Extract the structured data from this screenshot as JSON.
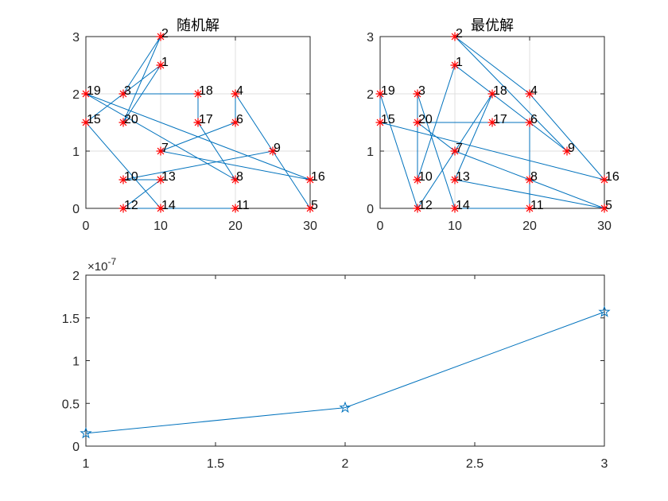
{
  "chart_data": [
    {
      "type": "scatter",
      "title": "随机解",
      "xlim": [
        0,
        30
      ],
      "ylim": [
        0,
        3
      ],
      "xticks": [
        "0",
        "10",
        "20",
        "30"
      ],
      "yticks": [
        "0",
        "1",
        "2",
        "3"
      ],
      "grid": true,
      "marker": "*",
      "marker_color": "#ff0000",
      "line_color": "#0072bd",
      "points": [
        {
          "label": "1",
          "x": 10,
          "y": 2.5
        },
        {
          "label": "2",
          "x": 10,
          "y": 3
        },
        {
          "label": "3",
          "x": 5,
          "y": 2
        },
        {
          "label": "4",
          "x": 20,
          "y": 2
        },
        {
          "label": "5",
          "x": 30,
          "y": 0
        },
        {
          "label": "6",
          "x": 20,
          "y": 1.5
        },
        {
          "label": "7",
          "x": 10,
          "y": 1
        },
        {
          "label": "8",
          "x": 20,
          "y": 0.5
        },
        {
          "label": "9",
          "x": 25,
          "y": 1
        },
        {
          "label": "10",
          "x": 5,
          "y": 0.5
        },
        {
          "label": "11",
          "x": 20,
          "y": 0
        },
        {
          "label": "12",
          "x": 5,
          "y": 0
        },
        {
          "label": "13",
          "x": 10,
          "y": 0.5
        },
        {
          "label": "14",
          "x": 10,
          "y": 0
        },
        {
          "label": "15",
          "x": 0,
          "y": 1.5
        },
        {
          "label": "16",
          "x": 30,
          "y": 0.5
        },
        {
          "label": "17",
          "x": 15,
          "y": 1.5
        },
        {
          "label": "18",
          "x": 15,
          "y": 2
        },
        {
          "label": "19",
          "x": 0,
          "y": 2
        },
        {
          "label": "20",
          "x": 5,
          "y": 1.5
        }
      ],
      "route": [
        3,
        18,
        17,
        8,
        19,
        16,
        7,
        6,
        4,
        5,
        9,
        10,
        13,
        12,
        11,
        14,
        15,
        1,
        20,
        2,
        3
      ]
    },
    {
      "type": "scatter",
      "title": "最优解",
      "xlim": [
        0,
        30
      ],
      "ylim": [
        0,
        3
      ],
      "xticks": [
        "0",
        "10",
        "20",
        "30"
      ],
      "yticks": [
        "0",
        "1",
        "2",
        "3"
      ],
      "grid": true,
      "marker": "*",
      "marker_color": "#ff0000",
      "line_color": "#0072bd",
      "points": [
        {
          "label": "1",
          "x": 10,
          "y": 2.5
        },
        {
          "label": "2",
          "x": 10,
          "y": 3
        },
        {
          "label": "3",
          "x": 5,
          "y": 2
        },
        {
          "label": "4",
          "x": 20,
          "y": 2
        },
        {
          "label": "5",
          "x": 30,
          "y": 0
        },
        {
          "label": "6",
          "x": 20,
          "y": 1.5
        },
        {
          "label": "7",
          "x": 10,
          "y": 1
        },
        {
          "label": "8",
          "x": 20,
          "y": 0.5
        },
        {
          "label": "9",
          "x": 25,
          "y": 1
        },
        {
          "label": "10",
          "x": 5,
          "y": 0.5
        },
        {
          "label": "11",
          "x": 20,
          "y": 0
        },
        {
          "label": "12",
          "x": 5,
          "y": 0
        },
        {
          "label": "13",
          "x": 10,
          "y": 0.5
        },
        {
          "label": "14",
          "x": 10,
          "y": 0
        },
        {
          "label": "15",
          "x": 0,
          "y": 1.5
        },
        {
          "label": "16",
          "x": 30,
          "y": 0.5
        },
        {
          "label": "17",
          "x": 15,
          "y": 1.5
        },
        {
          "label": "18",
          "x": 15,
          "y": 2
        },
        {
          "label": "19",
          "x": 0,
          "y": 2
        },
        {
          "label": "20",
          "x": 5,
          "y": 1.5
        }
      ],
      "route": [
        2,
        4,
        16,
        15,
        19,
        12,
        18,
        13,
        5,
        8,
        7,
        20,
        17,
        6,
        11,
        14,
        3,
        10,
        1,
        9,
        2
      ]
    },
    {
      "type": "line",
      "marker": "pentagram",
      "line_color": "#0072bd",
      "x": [
        1,
        2,
        3
      ],
      "y": [
        0.15,
        0.45,
        1.57
      ],
      "y_scale_label": "×10",
      "y_scale_exponent": "-7",
      "xlim": [
        1,
        3
      ],
      "ylim": [
        0,
        2
      ],
      "xticks": [
        "1",
        "1.5",
        "2",
        "2.5",
        "3"
      ],
      "yticks": [
        "0",
        "0.5",
        "1",
        "1.5",
        "2"
      ],
      "grid": false
    }
  ]
}
